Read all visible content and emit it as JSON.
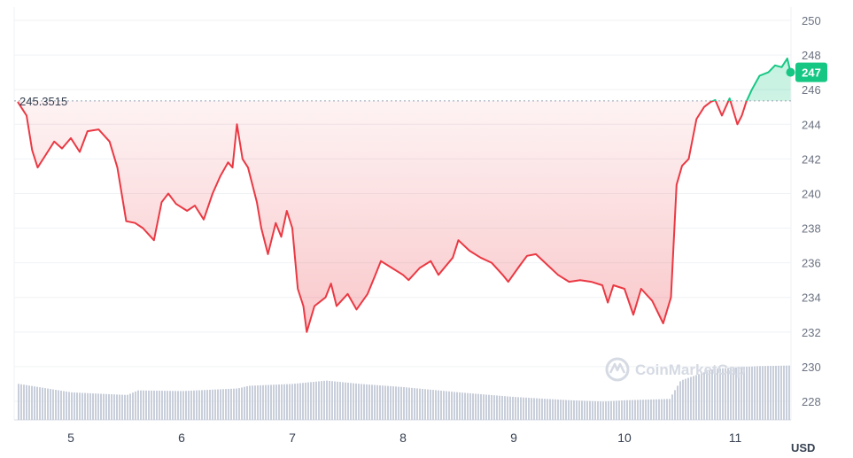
{
  "chart_data": {
    "type": "line",
    "unit": "USD",
    "ylim": [
      227,
      251
    ],
    "y_ticks": [
      228,
      230,
      232,
      234,
      236,
      238,
      240,
      242,
      244,
      246,
      248,
      250
    ],
    "x_ticks": [
      {
        "day": 5,
        "label": "5"
      },
      {
        "day": 6,
        "label": "6"
      },
      {
        "day": 7,
        "label": "7"
      },
      {
        "day": 8,
        "label": "8"
      },
      {
        "day": 9,
        "label": "9"
      },
      {
        "day": 10,
        "label": "10"
      },
      {
        "day": 11,
        "label": "11"
      }
    ],
    "reference_price": 245.3515,
    "reference_label": "245.3515",
    "last_price_label": "247",
    "watermark": "CoinMarketCap",
    "grid": true,
    "colors": {
      "below": "#ea3943",
      "above": "#16c784",
      "volume": "#c8ceda",
      "grid": "#eff2f5"
    },
    "price_series": [
      [
        4.52,
        245.3
      ],
      [
        4.6,
        244.5
      ],
      [
        4.65,
        242.5
      ],
      [
        4.7,
        241.5
      ],
      [
        4.78,
        242.3
      ],
      [
        4.85,
        243.0
      ],
      [
        4.92,
        242.6
      ],
      [
        5.0,
        243.2
      ],
      [
        5.08,
        242.4
      ],
      [
        5.15,
        243.6
      ],
      [
        5.25,
        243.7
      ],
      [
        5.35,
        243.0
      ],
      [
        5.42,
        241.5
      ],
      [
        5.5,
        238.4
      ],
      [
        5.58,
        238.3
      ],
      [
        5.65,
        238.0
      ],
      [
        5.75,
        237.3
      ],
      [
        5.82,
        239.5
      ],
      [
        5.88,
        240.0
      ],
      [
        5.95,
        239.4
      ],
      [
        6.05,
        239.0
      ],
      [
        6.12,
        239.3
      ],
      [
        6.2,
        238.5
      ],
      [
        6.28,
        240.0
      ],
      [
        6.35,
        241.0
      ],
      [
        6.42,
        241.8
      ],
      [
        6.46,
        241.5
      ],
      [
        6.5,
        244.0
      ],
      [
        6.55,
        242.0
      ],
      [
        6.6,
        241.5
      ],
      [
        6.68,
        239.5
      ],
      [
        6.72,
        238.0
      ],
      [
        6.78,
        236.5
      ],
      [
        6.85,
        238.3
      ],
      [
        6.9,
        237.5
      ],
      [
        6.95,
        239.0
      ],
      [
        7.0,
        238.0
      ],
      [
        7.05,
        234.5
      ],
      [
        7.1,
        233.5
      ],
      [
        7.13,
        232.0
      ],
      [
        7.2,
        233.5
      ],
      [
        7.3,
        234.0
      ],
      [
        7.35,
        234.8
      ],
      [
        7.4,
        233.5
      ],
      [
        7.5,
        234.2
      ],
      [
        7.58,
        233.3
      ],
      [
        7.68,
        234.2
      ],
      [
        7.75,
        235.3
      ],
      [
        7.8,
        236.1
      ],
      [
        7.9,
        235.7
      ],
      [
        8.0,
        235.3
      ],
      [
        8.05,
        235.0
      ],
      [
        8.15,
        235.7
      ],
      [
        8.25,
        236.1
      ],
      [
        8.32,
        235.3
      ],
      [
        8.45,
        236.3
      ],
      [
        8.5,
        237.3
      ],
      [
        8.6,
        236.7
      ],
      [
        8.7,
        236.3
      ],
      [
        8.8,
        236.0
      ],
      [
        8.9,
        235.3
      ],
      [
        8.95,
        234.9
      ],
      [
        9.05,
        235.8
      ],
      [
        9.12,
        236.4
      ],
      [
        9.2,
        236.5
      ],
      [
        9.3,
        235.9
      ],
      [
        9.4,
        235.3
      ],
      [
        9.5,
        234.9
      ],
      [
        9.6,
        235.0
      ],
      [
        9.7,
        234.9
      ],
      [
        9.8,
        234.7
      ],
      [
        9.85,
        233.7
      ],
      [
        9.9,
        234.7
      ],
      [
        10.0,
        234.5
      ],
      [
        10.08,
        233.0
      ],
      [
        10.15,
        234.5
      ],
      [
        10.25,
        233.8
      ],
      [
        10.35,
        232.5
      ],
      [
        10.42,
        234.0
      ],
      [
        10.47,
        240.5
      ],
      [
        10.52,
        241.6
      ],
      [
        10.58,
        242.0
      ],
      [
        10.65,
        244.3
      ],
      [
        10.72,
        245.0
      ],
      [
        10.78,
        245.3
      ],
      [
        10.82,
        245.4
      ],
      [
        10.88,
        244.5
      ],
      [
        10.95,
        245.5
      ],
      [
        11.02,
        244.0
      ],
      [
        11.06,
        244.5
      ],
      [
        11.1,
        245.3
      ],
      [
        11.15,
        246.0
      ],
      [
        11.22,
        246.8
      ],
      [
        11.3,
        247.0
      ],
      [
        11.36,
        247.4
      ],
      [
        11.42,
        247.3
      ],
      [
        11.47,
        247.8
      ],
      [
        11.5,
        247.0
      ]
    ],
    "volume_series": [
      [
        4.52,
        0.55
      ],
      [
        5.0,
        0.42
      ],
      [
        5.5,
        0.38
      ],
      [
        5.6,
        0.45
      ],
      [
        6.0,
        0.44
      ],
      [
        6.5,
        0.48
      ],
      [
        6.6,
        0.52
      ],
      [
        7.0,
        0.55
      ],
      [
        7.3,
        0.6
      ],
      [
        7.6,
        0.55
      ],
      [
        8.0,
        0.5
      ],
      [
        8.5,
        0.42
      ],
      [
        9.0,
        0.35
      ],
      [
        9.5,
        0.3
      ],
      [
        9.8,
        0.28
      ],
      [
        10.0,
        0.3
      ],
      [
        10.4,
        0.32
      ],
      [
        10.5,
        0.6
      ],
      [
        10.8,
        0.78
      ],
      [
        11.2,
        0.82
      ],
      [
        11.5,
        0.83
      ]
    ]
  }
}
